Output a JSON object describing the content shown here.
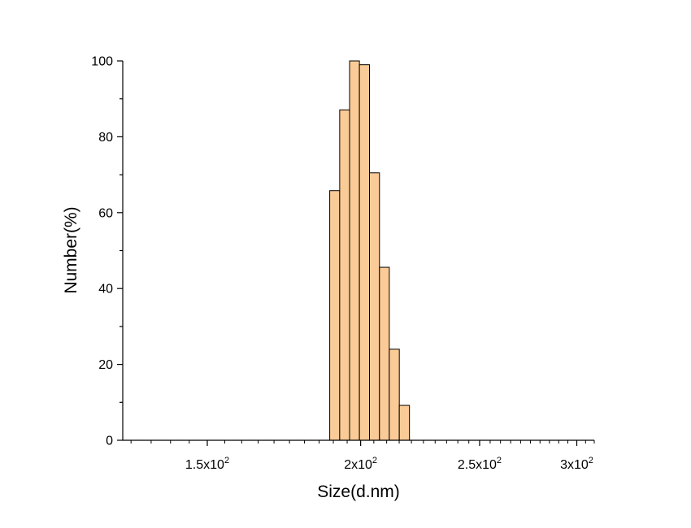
{
  "chart_data": {
    "type": "bar",
    "xlabel": "Size(d.nm)",
    "ylabel": "Number(%)",
    "xscale": "log",
    "xlim": [
      128,
      310
    ],
    "ylim": [
      0,
      100
    ],
    "grid": false,
    "legend": "none",
    "bar_color": "#FBCB97",
    "bar_edge_color": "#000000",
    "x_ticks": [
      {
        "value": 150,
        "mantissa": "1.5x10",
        "exp": "2"
      },
      {
        "value": 200,
        "mantissa": "2x10",
        "exp": "2"
      },
      {
        "value": 250,
        "mantissa": "2.5x10",
        "exp": "2"
      },
      {
        "value": 300,
        "mantissa": "3x10",
        "exp": "2"
      }
    ],
    "y_ticks": [
      0,
      20,
      40,
      60,
      80,
      100
    ],
    "bars": [
      {
        "x": 190.5,
        "value": 65.8
      },
      {
        "x": 194.1,
        "value": 87.1
      },
      {
        "x": 197.7,
        "value": 100.0
      },
      {
        "x": 201.4,
        "value": 99.0
      },
      {
        "x": 205.3,
        "value": 70.5
      },
      {
        "x": 209.1,
        "value": 45.6
      },
      {
        "x": 213.0,
        "value": 24.0
      },
      {
        "x": 217.1,
        "value": 9.2
      }
    ]
  }
}
